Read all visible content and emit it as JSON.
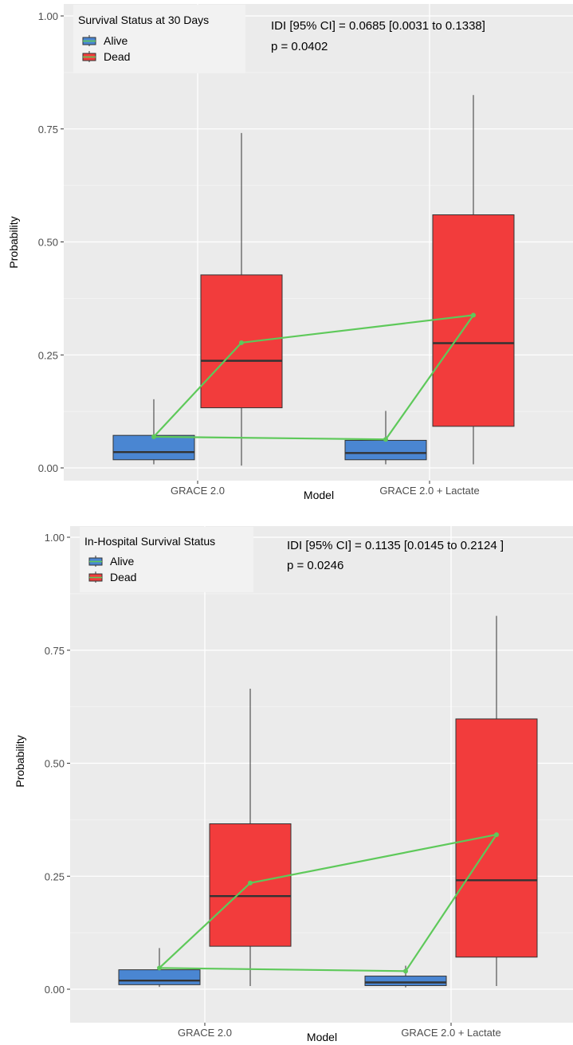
{
  "chart_data": [
    {
      "type": "boxplot",
      "xlabel": "Model",
      "ylabel": "Probability",
      "ylim": [
        0,
        1
      ],
      "yticks": [
        "0.00",
        "0.25",
        "0.50",
        "0.75",
        "1.00"
      ],
      "categories": [
        "GRACE 2.0",
        "GRACE 2.0 + Lactate"
      ],
      "legend": {
        "title": "Survival Status at 30 Days",
        "entries": [
          "Alive",
          "Dead"
        ],
        "position": "top-left"
      },
      "annotations": [
        "IDI [95% CI] = 0.0685 [0.0031 to 0.1338]",
        "p = 0.0402"
      ],
      "series": [
        {
          "name": "Alive",
          "color": "#4a86d2",
          "boxes": [
            {
              "min": 0.008,
              "q1": 0.018,
              "median": 0.035,
              "q3": 0.072,
              "max": 0.152,
              "mean": 0.069
            },
            {
              "min": 0.008,
              "q1": 0.018,
              "median": 0.033,
              "q3": 0.061,
              "max": 0.126,
              "mean": 0.063
            }
          ]
        },
        {
          "name": "Dead",
          "color": "#f23c3c",
          "boxes": [
            {
              "min": 0.005,
              "q1": 0.133,
              "median": 0.237,
              "q3": 0.427,
              "max": 0.741,
              "mean": 0.277
            },
            {
              "min": 0.008,
              "q1": 0.092,
              "median": 0.276,
              "q3": 0.56,
              "max": 0.825,
              "mean": 0.338
            }
          ]
        }
      ],
      "mean_line_color": "#5ec95a",
      "grid": true
    },
    {
      "type": "boxplot",
      "xlabel": "Model",
      "ylabel": "Probability",
      "ylim": [
        0,
        1
      ],
      "yticks": [
        "0.00",
        "0.25",
        "0.50",
        "0.75",
        "1.00"
      ],
      "categories": [
        "GRACE 2.0",
        "GRACE 2.0 + Lactate"
      ],
      "legend": {
        "title": "In-Hospital Survival Status",
        "entries": [
          "Alive",
          "Dead"
        ],
        "position": "top-left"
      },
      "annotations": [
        "IDI [95% CI] = 0.1135 [0.0145 to 0.2124 ]",
        "p = 0.0246"
      ],
      "series": [
        {
          "name": "Alive",
          "color": "#4a86d2",
          "boxes": [
            {
              "min": 0.005,
              "q1": 0.01,
              "median": 0.019,
              "q3": 0.043,
              "max": 0.091,
              "mean": 0.047
            },
            {
              "min": 0.004,
              "q1": 0.008,
              "median": 0.015,
              "q3": 0.029,
              "max": 0.052,
              "mean": 0.04
            }
          ]
        },
        {
          "name": "Dead",
          "color": "#f23c3c",
          "boxes": [
            {
              "min": 0.007,
              "q1": 0.095,
              "median": 0.206,
              "q3": 0.366,
              "max": 0.665,
              "mean": 0.235
            },
            {
              "min": 0.007,
              "q1": 0.071,
              "median": 0.241,
              "q3": 0.598,
              "max": 0.826,
              "mean": 0.342
            }
          ]
        }
      ],
      "mean_line_color": "#5ec95a",
      "grid": true
    }
  ]
}
